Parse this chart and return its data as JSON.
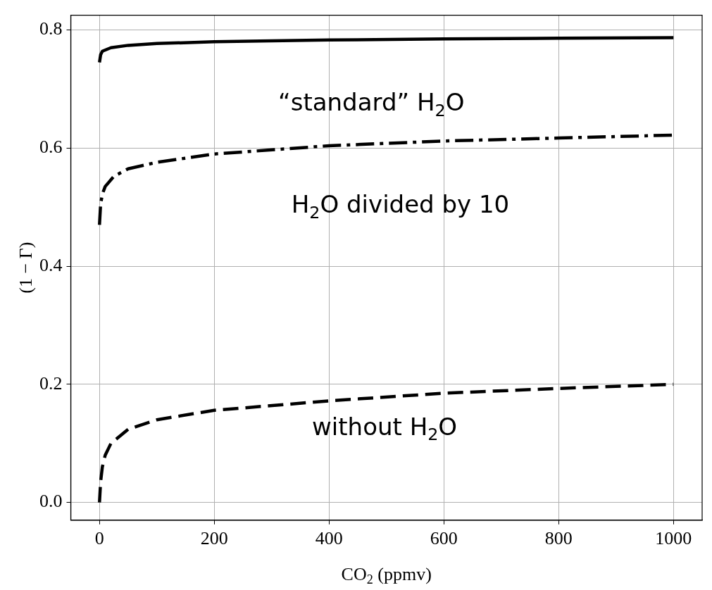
{
  "chart_data": {
    "type": "line",
    "xlabel": "CO$_{2}$ (ppmv)",
    "ylabel": "(1 − Γ)",
    "xlim": [
      -50,
      1050
    ],
    "ylim": [
      -0.03,
      0.825
    ],
    "xticks": [
      0,
      200,
      400,
      600,
      800,
      1000
    ],
    "yticks": [
      {
        "value": 0,
        "label": "0.0"
      },
      {
        "value": 0.2,
        "label": "0.2"
      },
      {
        "value": 0.4,
        "label": "0.4"
      },
      {
        "value": 0.6,
        "label": "0.6"
      },
      {
        "value": 0.8,
        "label": "0.8"
      }
    ],
    "grid": true,
    "marker": "none",
    "legend": false,
    "series": [
      {
        "color": "#000000",
        "line_style": "solid",
        "x": [
          0,
          2,
          5,
          20,
          50,
          100,
          200,
          400,
          600,
          800,
          1000
        ],
        "values": [
          0.745,
          0.758,
          0.764,
          0.77,
          0.774,
          0.777,
          0.78,
          0.783,
          0.785,
          0.786,
          0.787
        ]
      },
      {
        "color": "#000000",
        "line_style": "dashdot",
        "x": [
          0,
          2,
          5,
          10,
          25,
          50,
          100,
          200,
          400,
          600,
          800,
          1000
        ],
        "values": [
          0.47,
          0.505,
          0.522,
          0.535,
          0.552,
          0.565,
          0.576,
          0.59,
          0.604,
          0.612,
          0.617,
          0.622
        ]
      },
      {
        "color": "#000000",
        "line_style": "dashed",
        "x": [
          0,
          2,
          5,
          10,
          20,
          50,
          100,
          200,
          400,
          600,
          800,
          1000
        ],
        "values": [
          0.0,
          0.035,
          0.06,
          0.08,
          0.1,
          0.124,
          0.14,
          0.156,
          0.172,
          0.185,
          0.193,
          0.2
        ]
      }
    ],
    "annotations": [
      "“standard” H$_{2}$O",
      "H$_{2}$O divided by 10",
      "without H$_{2}$O"
    ]
  }
}
